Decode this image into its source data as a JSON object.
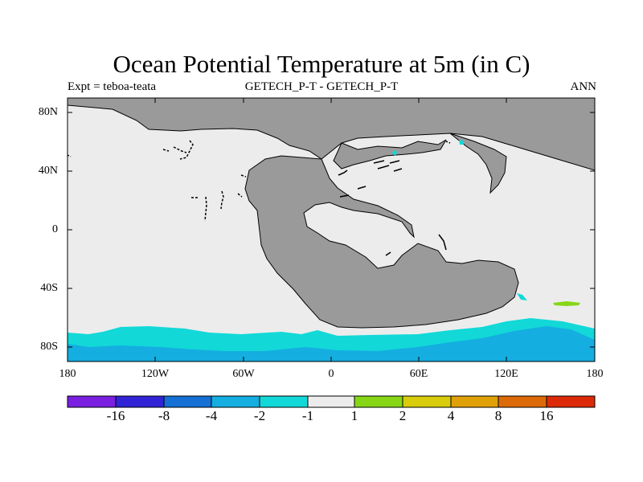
{
  "title": "Ocean Potential Temperature at 5m (in C)",
  "subtitle_left": "Expt = teboa-teata",
  "subtitle_center": "GETECH_P-T - GETECH_P-T",
  "subtitle_right": "ANN",
  "y_axis_labels": [
    "80N",
    "40N",
    "0",
    "40S",
    "80S"
  ],
  "x_axis_labels": [
    "180",
    "120W",
    "60W",
    "0",
    "60E",
    "120E",
    "180"
  ],
  "colorbar": {
    "colors": [
      "#7a1fe0",
      "#3024d6",
      "#1470d4",
      "#14aee0",
      "#12d8d8",
      "#ececec",
      "#86d616",
      "#d8cc0c",
      "#e0a008",
      "#dc6a08",
      "#dc2a08"
    ],
    "labels": [
      "-16",
      "-8",
      "-4",
      "-2",
      "-1",
      "1",
      "2",
      "4",
      "8",
      "16"
    ]
  },
  "colors": {
    "ocean": "#ececec",
    "land": "#9a9a9a",
    "cyan": "#12d8d8",
    "blue": "#14aee0",
    "green": "#86d616"
  }
}
